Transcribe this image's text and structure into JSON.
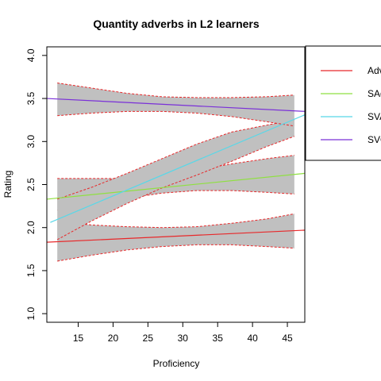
{
  "chart_data": {
    "type": "line",
    "title": "Quantity adverbs in L2 learners",
    "xlabel": "Proficiency",
    "ylabel": "Rating",
    "xlim": [
      10.5,
      47.5
    ],
    "ylim": [
      0.9,
      4.1
    ],
    "xticks": [
      15,
      20,
      25,
      30,
      35,
      40,
      45
    ],
    "yticks": [
      1.0,
      1.5,
      2.0,
      2.5,
      3.0,
      3.5,
      4.0
    ],
    "grid": false,
    "legend_position": "top-right",
    "series": [
      {
        "name": "Adv",
        "color": "#e8282a",
        "line": {
          "x": [
            10.5,
            47.5
          ],
          "y": [
            1.83,
            1.97
          ]
        },
        "band": {
          "x": [
            12,
            17,
            22,
            27,
            32,
            37,
            42,
            46
          ],
          "upper": [
            2.07,
            2.03,
            2.01,
            2.0,
            2.01,
            2.05,
            2.1,
            2.16
          ],
          "lower": [
            1.61,
            1.68,
            1.74,
            1.78,
            1.8,
            1.8,
            1.78,
            1.76
          ]
        }
      },
      {
        "name": "SAdv",
        "color": "#8fe040",
        "line": {
          "x": [
            10.5,
            47.5
          ],
          "y": [
            2.33,
            2.63
          ]
        },
        "band": {
          "x": [
            12,
            17,
            22,
            27,
            32,
            37,
            42,
            46
          ],
          "upper": [
            2.57,
            2.57,
            2.57,
            2.61,
            2.67,
            2.74,
            2.8,
            2.84
          ],
          "lower": [
            2.2,
            2.28,
            2.34,
            2.4,
            2.43,
            2.43,
            2.41,
            2.39
          ]
        }
      },
      {
        "name": "SVAdv",
        "color": "#58d8e8",
        "line": {
          "x": [
            11,
            47.5
          ],
          "y": [
            2.06,
            3.31
          ]
        },
        "band": {
          "x": [
            12,
            17,
            22,
            27,
            32,
            37,
            42,
            46
          ],
          "upper": [
            2.33,
            2.47,
            2.63,
            2.8,
            2.97,
            3.11,
            3.19,
            3.25
          ],
          "lower": [
            1.86,
            2.08,
            2.28,
            2.46,
            2.61,
            2.77,
            2.94,
            3.06
          ]
        }
      },
      {
        "name": "SVO",
        "color": "#7a30d8",
        "line": {
          "x": [
            10.5,
            47.5
          ],
          "y": [
            3.5,
            3.35
          ]
        },
        "band": {
          "x": [
            12,
            17,
            22,
            27,
            32,
            37,
            42,
            46
          ],
          "upper": [
            3.68,
            3.62,
            3.56,
            3.52,
            3.51,
            3.51,
            3.52,
            3.54
          ],
          "lower": [
            3.3,
            3.33,
            3.35,
            3.35,
            3.33,
            3.29,
            3.23,
            3.18
          ]
        }
      }
    ]
  }
}
